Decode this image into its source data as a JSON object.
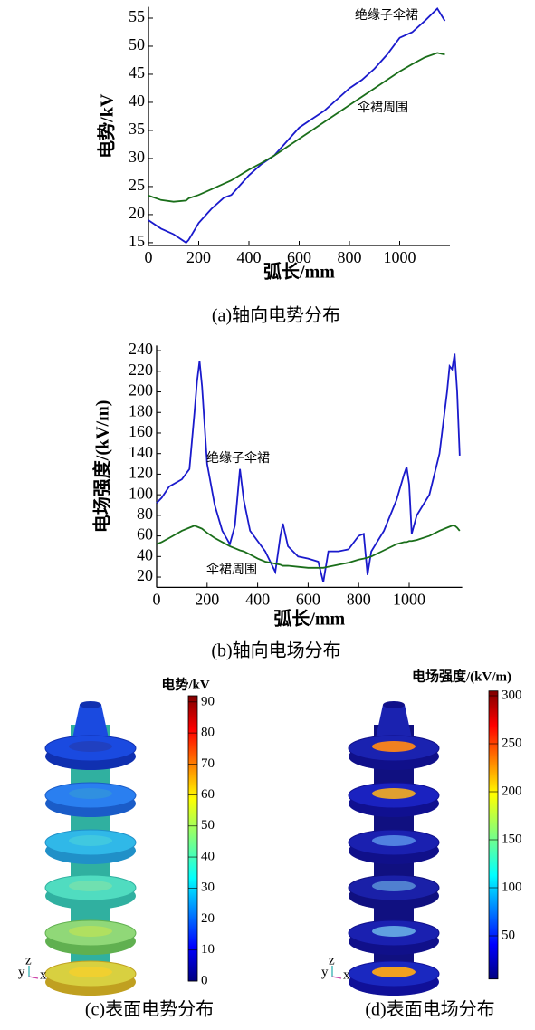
{
  "chart_data": [
    {
      "type": "line",
      "y_label": "电势/kV",
      "x_label": "弧长/mm",
      "caption": "(a)轴向电势分布",
      "xlim": [
        0,
        1200
      ],
      "ylim": [
        14.5,
        57
      ],
      "xticks": [
        0,
        200,
        400,
        600,
        800,
        1000
      ],
      "yticks": [
        15,
        20,
        25,
        30,
        35,
        40,
        45,
        50,
        55
      ],
      "x": [
        0,
        50,
        100,
        150,
        160,
        200,
        250,
        300,
        330,
        400,
        450,
        500,
        550,
        600,
        650,
        700,
        750,
        800,
        850,
        900,
        950,
        1000,
        1050,
        1100,
        1150,
        1180
      ],
      "series": [
        {
          "name": "绝缘子伞裙",
          "color": "#1a1acc",
          "values": [
            19,
            17.5,
            16.5,
            15,
            15.5,
            18.5,
            21,
            23,
            23.5,
            27,
            29,
            30.5,
            33,
            35.5,
            37,
            38.5,
            40.5,
            42.5,
            44,
            46,
            48.5,
            51.5,
            52.5,
            54.5,
            56.7,
            54.5
          ]
        },
        {
          "name": "伞裙周围",
          "color": "#1a6e1a",
          "values": [
            23.4,
            22.6,
            22.3,
            22.5,
            22.9,
            23.5,
            24.5,
            25.5,
            26.1,
            28,
            29.2,
            30.5,
            32,
            33.5,
            35,
            36.5,
            38,
            39.5,
            41,
            42.5,
            44,
            45.5,
            46.8,
            48,
            48.8,
            48.5
          ]
        }
      ]
    },
    {
      "type": "line",
      "y_label": "电场强度/(kV/m)",
      "x_label": "弧长/mm",
      "caption": "(b)轴向电场分布",
      "xlim": [
        0,
        1210
      ],
      "ylim": [
        10,
        245
      ],
      "xticks": [
        0,
        200,
        400,
        600,
        800,
        1000
      ],
      "yticks": [
        20,
        40,
        60,
        80,
        100,
        120,
        140,
        160,
        180,
        200,
        220,
        240
      ],
      "x": [
        0,
        20,
        50,
        100,
        130,
        150,
        160,
        170,
        180,
        200,
        230,
        260,
        290,
        310,
        330,
        345,
        370,
        400,
        430,
        470,
        490,
        500,
        520,
        560,
        600,
        640,
        660,
        680,
        720,
        760,
        800,
        820,
        835,
        850,
        900,
        950,
        980,
        990,
        1000,
        1010,
        1030,
        1080,
        1120,
        1150,
        1160,
        1170,
        1180,
        1190,
        1200
      ],
      "series": [
        {
          "name": "绝缘子伞裙",
          "color": "#1a1acc",
          "values": [
            92,
            97,
            108,
            115,
            125,
            180,
            210,
            230,
            205,
            130,
            90,
            65,
            52,
            70,
            125,
            95,
            65,
            55,
            45,
            25,
            60,
            72,
            50,
            40,
            38,
            35,
            15,
            45,
            45,
            47,
            60,
            62,
            22,
            45,
            65,
            95,
            120,
            127,
            110,
            62,
            80,
            100,
            140,
            200,
            225,
            222,
            237,
            200,
            138
          ]
        },
        {
          "name": "伞裙周围",
          "color": "#1a6e1a",
          "values": [
            52,
            54,
            58,
            65,
            68,
            70,
            69,
            68,
            67,
            63,
            58,
            54,
            50,
            48,
            46,
            45,
            42,
            38,
            35,
            33,
            32,
            31,
            31,
            30,
            29,
            29,
            29,
            30,
            32,
            34,
            37,
            38,
            39,
            40,
            46,
            52,
            54,
            54,
            55,
            55,
            56,
            60,
            65,
            68,
            69,
            70,
            70,
            68,
            65
          ]
        }
      ]
    }
  ],
  "panels": [
    {
      "caption": "(c)表面电势分布",
      "colorbar": {
        "title": "电势/kV",
        "lim": [
          0,
          92
        ],
        "ticks": [
          0,
          10,
          20,
          30,
          40,
          50,
          60,
          70,
          80,
          90
        ]
      }
    },
    {
      "caption": "(d)表面电场分布",
      "colorbar": {
        "title": "电场强度/(kV/m)",
        "lim": [
          5,
          305
        ],
        "ticks": [
          50,
          100,
          150,
          200,
          250,
          300
        ]
      }
    }
  ],
  "triad": {
    "y": "y",
    "z": "z",
    "x": "x"
  }
}
